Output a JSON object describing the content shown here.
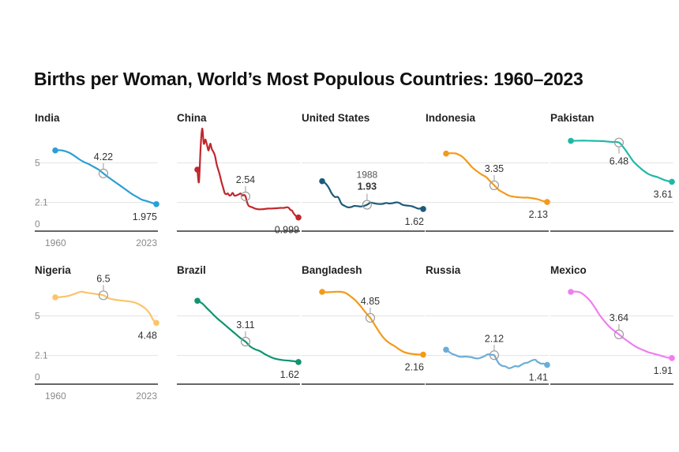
{
  "title": "Births per Woman, World’s Most Populous Countries: 1960–2023",
  "chart_data": {
    "type": "line",
    "title": "Births per Woman, World’s Most Populous Countries: 1960–2023",
    "xlim": [
      1960,
      2023
    ],
    "ylim": [
      0,
      7.5
    ],
    "x_tick_labels": [
      "1960",
      "2023"
    ],
    "y_tick_labels": [
      "0",
      "2.1",
      "5"
    ],
    "panels": [
      {
        "name": "India",
        "color": "#2b9fd6",
        "mid_year": 1990,
        "mid_value": 4.22,
        "mid_label": "4.22",
        "end_label": "1.975",
        "points": [
          [
            1960,
            5.9
          ],
          [
            1963,
            5.92
          ],
          [
            1966,
            5.85
          ],
          [
            1969,
            5.72
          ],
          [
            1972,
            5.5
          ],
          [
            1975,
            5.25
          ],
          [
            1978,
            5.05
          ],
          [
            1981,
            4.9
          ],
          [
            1984,
            4.7
          ],
          [
            1987,
            4.5
          ],
          [
            1990,
            4.22
          ],
          [
            1993,
            3.95
          ],
          [
            1996,
            3.7
          ],
          [
            1999,
            3.45
          ],
          [
            2002,
            3.2
          ],
          [
            2005,
            2.95
          ],
          [
            2008,
            2.7
          ],
          [
            2011,
            2.5
          ],
          [
            2014,
            2.3
          ],
          [
            2017,
            2.2
          ],
          [
            2020,
            2.08
          ],
          [
            2023,
            1.975
          ]
        ]
      },
      {
        "name": "China",
        "color": "#c0272d",
        "mid_year": 1990,
        "mid_value": 2.54,
        "mid_label": "2.54",
        "end_label": "0.999",
        "points": [
          [
            1960,
            4.5
          ],
          [
            1961,
            3.6
          ],
          [
            1962,
            6.1
          ],
          [
            1963,
            7.5
          ],
          [
            1964,
            6.4
          ],
          [
            1965,
            6.7
          ],
          [
            1966,
            6.3
          ],
          [
            1967,
            5.9
          ],
          [
            1968,
            6.4
          ],
          [
            1969,
            6.0
          ],
          [
            1970,
            5.8
          ],
          [
            1971,
            5.5
          ],
          [
            1972,
            4.9
          ],
          [
            1973,
            4.5
          ],
          [
            1974,
            4.1
          ],
          [
            1975,
            3.6
          ],
          [
            1976,
            3.2
          ],
          [
            1977,
            2.8
          ],
          [
            1978,
            2.7
          ],
          [
            1979,
            2.75
          ],
          [
            1980,
            2.6
          ],
          [
            1981,
            2.65
          ],
          [
            1982,
            2.8
          ],
          [
            1983,
            2.6
          ],
          [
            1984,
            2.6
          ],
          [
            1985,
            2.65
          ],
          [
            1986,
            2.7
          ],
          [
            1987,
            2.75
          ],
          [
            1988,
            2.6
          ],
          [
            1989,
            2.65
          ],
          [
            1990,
            2.54
          ],
          [
            1991,
            2.1
          ],
          [
            1992,
            1.85
          ],
          [
            1994,
            1.75
          ],
          [
            1996,
            1.65
          ],
          [
            1998,
            1.6
          ],
          [
            2000,
            1.6
          ],
          [
            2002,
            1.62
          ],
          [
            2004,
            1.65
          ],
          [
            2006,
            1.65
          ],
          [
            2008,
            1.67
          ],
          [
            2010,
            1.68
          ],
          [
            2012,
            1.7
          ],
          [
            2014,
            1.7
          ],
          [
            2016,
            1.75
          ],
          [
            2017,
            1.7
          ],
          [
            2018,
            1.55
          ],
          [
            2019,
            1.5
          ],
          [
            2020,
            1.3
          ],
          [
            2021,
            1.16
          ],
          [
            2022,
            1.05
          ],
          [
            2023,
            0.999
          ]
        ]
      },
      {
        "name": "United States",
        "color": "#1d5a7a",
        "mid_year": 1988,
        "mid_value": 1.93,
        "mid_label": "1.93",
        "mid_year_label": "1988",
        "end_label": "1.62",
        "points": [
          [
            1960,
            3.65
          ],
          [
            1962,
            3.5
          ],
          [
            1964,
            3.2
          ],
          [
            1966,
            2.75
          ],
          [
            1968,
            2.5
          ],
          [
            1970,
            2.48
          ],
          [
            1972,
            2.01
          ],
          [
            1974,
            1.85
          ],
          [
            1976,
            1.74
          ],
          [
            1978,
            1.76
          ],
          [
            1980,
            1.84
          ],
          [
            1982,
            1.83
          ],
          [
            1984,
            1.8
          ],
          [
            1986,
            1.84
          ],
          [
            1988,
            1.93
          ],
          [
            1990,
            2.08
          ],
          [
            1992,
            2.05
          ],
          [
            1994,
            2.0
          ],
          [
            1996,
            1.98
          ],
          [
            1998,
            2.0
          ],
          [
            2000,
            2.06
          ],
          [
            2002,
            2.02
          ],
          [
            2004,
            2.05
          ],
          [
            2006,
            2.1
          ],
          [
            2008,
            2.07
          ],
          [
            2010,
            1.93
          ],
          [
            2012,
            1.88
          ],
          [
            2014,
            1.86
          ],
          [
            2016,
            1.82
          ],
          [
            2018,
            1.73
          ],
          [
            2020,
            1.64
          ],
          [
            2021,
            1.66
          ],
          [
            2022,
            1.66
          ],
          [
            2023,
            1.62
          ]
        ]
      },
      {
        "name": "Indonesia",
        "color": "#f39a1a",
        "mid_year": 1990,
        "mid_value": 3.35,
        "mid_label": "3.35",
        "end_label": "2.13",
        "points": [
          [
            1960,
            5.67
          ],
          [
            1963,
            5.7
          ],
          [
            1966,
            5.68
          ],
          [
            1968,
            5.58
          ],
          [
            1970,
            5.45
          ],
          [
            1973,
            5.1
          ],
          [
            1976,
            4.7
          ],
          [
            1979,
            4.4
          ],
          [
            1982,
            4.15
          ],
          [
            1985,
            3.95
          ],
          [
            1987,
            3.7
          ],
          [
            1990,
            3.35
          ],
          [
            1993,
            3.0
          ],
          [
            1996,
            2.8
          ],
          [
            1999,
            2.6
          ],
          [
            2002,
            2.52
          ],
          [
            2005,
            2.48
          ],
          [
            2008,
            2.45
          ],
          [
            2011,
            2.45
          ],
          [
            2014,
            2.4
          ],
          [
            2017,
            2.33
          ],
          [
            2020,
            2.22
          ],
          [
            2023,
            2.13
          ]
        ]
      },
      {
        "name": "Pakistan",
        "color": "#1fb8a6",
        "mid_year": 1990,
        "mid_value": 6.48,
        "mid_label": "6.48",
        "end_label": "3.61",
        "points": [
          [
            1960,
            6.6
          ],
          [
            1965,
            6.62
          ],
          [
            1970,
            6.62
          ],
          [
            1975,
            6.6
          ],
          [
            1980,
            6.58
          ],
          [
            1983,
            6.55
          ],
          [
            1986,
            6.52
          ],
          [
            1990,
            6.48
          ],
          [
            1993,
            6.1
          ],
          [
            1996,
            5.6
          ],
          [
            1999,
            5.1
          ],
          [
            2002,
            4.75
          ],
          [
            2005,
            4.45
          ],
          [
            2008,
            4.2
          ],
          [
            2011,
            4.05
          ],
          [
            2014,
            3.95
          ],
          [
            2017,
            3.8
          ],
          [
            2020,
            3.68
          ],
          [
            2023,
            3.61
          ]
        ]
      },
      {
        "name": "Nigeria",
        "color": "#fcc46a",
        "mid_year": 1990,
        "mid_value": 6.5,
        "mid_label": "6.5",
        "end_label": "4.48",
        "points": [
          [
            1960,
            6.35
          ],
          [
            1964,
            6.38
          ],
          [
            1968,
            6.45
          ],
          [
            1972,
            6.6
          ],
          [
            1976,
            6.76
          ],
          [
            1979,
            6.7
          ],
          [
            1982,
            6.65
          ],
          [
            1986,
            6.58
          ],
          [
            1990,
            6.5
          ],
          [
            1993,
            6.3
          ],
          [
            1996,
            6.2
          ],
          [
            2000,
            6.13
          ],
          [
            2004,
            6.08
          ],
          [
            2008,
            6.02
          ],
          [
            2012,
            5.85
          ],
          [
            2016,
            5.55
          ],
          [
            2019,
            5.15
          ],
          [
            2021,
            4.7
          ],
          [
            2023,
            4.48
          ]
        ]
      },
      {
        "name": "Brazil",
        "color": "#0f9470",
        "mid_year": 1990,
        "mid_value": 3.11,
        "mid_label": "3.11",
        "end_label": "1.62",
        "points": [
          [
            1960,
            6.1
          ],
          [
            1963,
            5.9
          ],
          [
            1966,
            5.55
          ],
          [
            1969,
            5.2
          ],
          [
            1972,
            4.85
          ],
          [
            1975,
            4.55
          ],
          [
            1978,
            4.25
          ],
          [
            1981,
            3.95
          ],
          [
            1984,
            3.65
          ],
          [
            1987,
            3.35
          ],
          [
            1990,
            3.11
          ],
          [
            1993,
            2.75
          ],
          [
            1996,
            2.55
          ],
          [
            1999,
            2.42
          ],
          [
            2002,
            2.2
          ],
          [
            2005,
            2.02
          ],
          [
            2008,
            1.88
          ],
          [
            2011,
            1.8
          ],
          [
            2014,
            1.75
          ],
          [
            2017,
            1.72
          ],
          [
            2020,
            1.68
          ],
          [
            2023,
            1.62
          ]
        ]
      },
      {
        "name": "Bangladesh",
        "color": "#f39a1a",
        "mid_year": 1990,
        "mid_value": 4.85,
        "mid_label": "4.85",
        "end_label": "2.16",
        "points": [
          [
            1960,
            6.75
          ],
          [
            1963,
            6.72
          ],
          [
            1966,
            6.74
          ],
          [
            1969,
            6.76
          ],
          [
            1972,
            6.75
          ],
          [
            1975,
            6.65
          ],
          [
            1978,
            6.4
          ],
          [
            1981,
            6.1
          ],
          [
            1984,
            5.7
          ],
          [
            1987,
            5.25
          ],
          [
            1990,
            4.85
          ],
          [
            1993,
            4.3
          ],
          [
            1996,
            3.75
          ],
          [
            1999,
            3.3
          ],
          [
            2002,
            3.0
          ],
          [
            2005,
            2.8
          ],
          [
            2008,
            2.55
          ],
          [
            2011,
            2.35
          ],
          [
            2014,
            2.25
          ],
          [
            2017,
            2.2
          ],
          [
            2020,
            2.17
          ],
          [
            2023,
            2.16
          ]
        ]
      },
      {
        "name": "Russia",
        "color": "#6aaed6",
        "mid_year": 1990,
        "mid_value": 2.12,
        "mid_label": "2.12",
        "end_label": "1.41",
        "points": [
          [
            1960,
            2.52
          ],
          [
            1962,
            2.35
          ],
          [
            1964,
            2.2
          ],
          [
            1966,
            2.12
          ],
          [
            1968,
            2.02
          ],
          [
            1970,
            2.0
          ],
          [
            1972,
            2.02
          ],
          [
            1974,
            2.0
          ],
          [
            1976,
            1.97
          ],
          [
            1978,
            1.9
          ],
          [
            1980,
            1.88
          ],
          [
            1982,
            1.95
          ],
          [
            1984,
            2.05
          ],
          [
            1986,
            2.18
          ],
          [
            1988,
            2.15
          ],
          [
            1990,
            2.12
          ],
          [
            1991,
            1.9
          ],
          [
            1993,
            1.5
          ],
          [
            1995,
            1.34
          ],
          [
            1997,
            1.3
          ],
          [
            1999,
            1.17
          ],
          [
            2001,
            1.22
          ],
          [
            2003,
            1.32
          ],
          [
            2005,
            1.29
          ],
          [
            2007,
            1.42
          ],
          [
            2009,
            1.54
          ],
          [
            2011,
            1.58
          ],
          [
            2013,
            1.71
          ],
          [
            2015,
            1.78
          ],
          [
            2016,
            1.76
          ],
          [
            2017,
            1.62
          ],
          [
            2018,
            1.58
          ],
          [
            2019,
            1.5
          ],
          [
            2020,
            1.5
          ],
          [
            2021,
            1.5
          ],
          [
            2022,
            1.42
          ],
          [
            2023,
            1.41
          ]
        ]
      },
      {
        "name": "Mexico",
        "color": "#f07ef0",
        "mid_year": 1990,
        "mid_value": 3.64,
        "mid_label": "3.64",
        "end_label": "1.91",
        "points": [
          [
            1960,
            6.75
          ],
          [
            1963,
            6.77
          ],
          [
            1966,
            6.7
          ],
          [
            1969,
            6.45
          ],
          [
            1972,
            6.1
          ],
          [
            1975,
            5.6
          ],
          [
            1978,
            5.05
          ],
          [
            1981,
            4.6
          ],
          [
            1984,
            4.2
          ],
          [
            1987,
            3.9
          ],
          [
            1990,
            3.64
          ],
          [
            1993,
            3.35
          ],
          [
            1996,
            3.1
          ],
          [
            1999,
            2.85
          ],
          [
            2002,
            2.65
          ],
          [
            2005,
            2.5
          ],
          [
            2008,
            2.35
          ],
          [
            2011,
            2.25
          ],
          [
            2014,
            2.15
          ],
          [
            2017,
            2.05
          ],
          [
            2020,
            1.95
          ],
          [
            2023,
            1.91
          ]
        ]
      }
    ]
  }
}
